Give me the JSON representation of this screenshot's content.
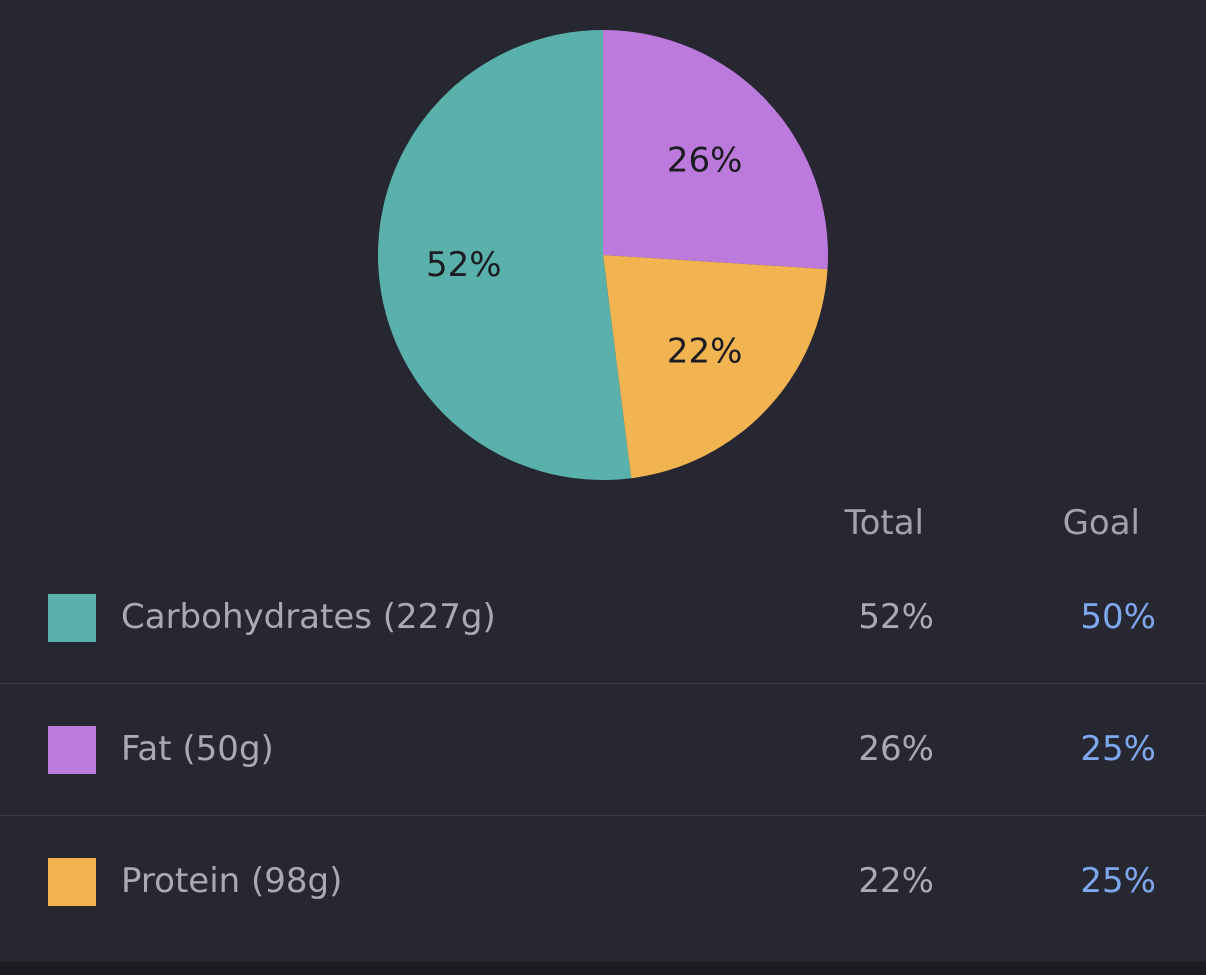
{
  "chart_data": {
    "type": "pie",
    "slices": [
      {
        "name": "Carbohydrates",
        "value": 52,
        "label": "52%",
        "color": "#5ab1ab"
      },
      {
        "name": "Fat",
        "value": 26,
        "label": "26%",
        "color": "#bc7bdc"
      },
      {
        "name": "Protein",
        "value": 22,
        "label": "22%",
        "color": "#f1b451"
      }
    ]
  },
  "table": {
    "headers": {
      "total": "Total",
      "goal": "Goal"
    },
    "rows": [
      {
        "label": "Carbohydrates (227g)",
        "total": "52%",
        "goal": "50%",
        "color": "#5ab1ab"
      },
      {
        "label": "Fat (50g)",
        "total": "26%",
        "goal": "25%",
        "color": "#bc7bdc"
      },
      {
        "label": "Protein (98g)",
        "total": "22%",
        "goal": "25%",
        "color": "#f1b451"
      }
    ]
  }
}
